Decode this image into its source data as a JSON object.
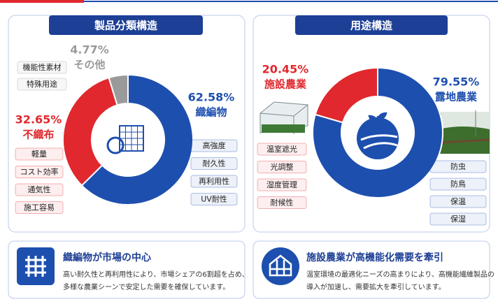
{
  "chart_data": [
    {
      "type": "pie",
      "title": "製品分類構造",
      "categories": [
        "織編物",
        "不織布",
        "その他"
      ],
      "values": [
        62.58,
        32.65,
        4.77
      ],
      "value_labels": [
        "62.58%",
        "32.65%",
        "4.77%"
      ],
      "colors": [
        "#1d4fae",
        "#e0282e",
        "#9a9a9a"
      ],
      "tags": [
        [
          "高強度",
          "耐久性",
          "再利用性",
          "UV耐性"
        ],
        [
          "軽量",
          "コスト効率",
          "通気性",
          "施工容易"
        ],
        [
          "機能性素材",
          "特殊用途"
        ]
      ]
    },
    {
      "type": "pie",
      "title": "用途構造",
      "categories": [
        "露地農業",
        "施設農業"
      ],
      "values": [
        79.55,
        20.45
      ],
      "value_labels": [
        "79.55%",
        "20.45%"
      ],
      "colors": [
        "#1d4fae",
        "#e0282e"
      ],
      "tags": [
        [
          "防虫",
          "防鳥",
          "保温",
          "保湿"
        ],
        [
          "温室遮光",
          "光調整",
          "湿度管理",
          "耐候性"
        ]
      ]
    }
  ],
  "cards": [
    {
      "title": "織編物が市場の中心",
      "lines": [
        "高い耐久性と再利用性により、市場シェアの6割超を占め、",
        "多様な農業シーンで安定した需要を確保しています。"
      ]
    },
    {
      "title": "施設農業が高機能化需要を牽引",
      "lines": [
        "温室環境の最適化ニーズの高まりにより、高機能繊維製品の",
        "導入が加速し、需要拡大を牽引しています。"
      ]
    }
  ]
}
